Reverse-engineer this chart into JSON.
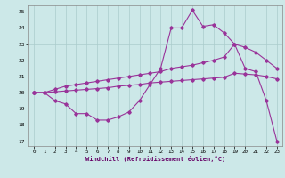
{
  "xlabel": "Windchill (Refroidissement éolien,°C)",
  "bg_color": "#cce8e8",
  "grid_color": "#aacccc",
  "line_color": "#993399",
  "xlim": [
    -0.5,
    23.5
  ],
  "ylim": [
    16.7,
    25.4
  ],
  "yticks": [
    17,
    18,
    19,
    20,
    21,
    22,
    23,
    24,
    25
  ],
  "xticks": [
    0,
    1,
    2,
    3,
    4,
    5,
    6,
    7,
    8,
    9,
    10,
    11,
    12,
    13,
    14,
    15,
    16,
    17,
    18,
    19,
    20,
    21,
    22,
    23
  ],
  "line1_x": [
    0,
    1,
    2,
    3,
    4,
    5,
    6,
    7,
    8,
    9,
    10,
    11,
    12,
    13,
    14,
    15,
    16,
    17,
    18,
    19,
    20,
    21,
    22,
    23
  ],
  "line1_y": [
    20.0,
    20.0,
    19.5,
    19.3,
    18.7,
    18.7,
    18.3,
    18.3,
    18.5,
    18.8,
    19.5,
    20.5,
    21.5,
    24.0,
    24.0,
    25.1,
    24.1,
    24.2,
    23.7,
    23.0,
    21.5,
    21.3,
    19.5,
    17.0
  ],
  "line2_x": [
    0,
    1,
    2,
    3,
    4,
    5,
    6,
    7,
    8,
    9,
    10,
    11,
    12,
    13,
    14,
    15,
    16,
    17,
    18,
    19,
    20,
    21,
    22,
    23
  ],
  "line2_y": [
    20.0,
    20.0,
    20.2,
    20.4,
    20.5,
    20.6,
    20.7,
    20.8,
    20.9,
    21.0,
    21.1,
    21.2,
    21.3,
    21.5,
    21.6,
    21.7,
    21.85,
    22.0,
    22.2,
    23.0,
    22.8,
    22.5,
    22.0,
    21.5
  ],
  "line3_x": [
    0,
    1,
    2,
    3,
    4,
    5,
    6,
    7,
    8,
    9,
    10,
    11,
    12,
    13,
    14,
    15,
    16,
    17,
    18,
    19,
    20,
    21,
    22,
    23
  ],
  "line3_y": [
    20.0,
    20.0,
    20.05,
    20.1,
    20.15,
    20.2,
    20.25,
    20.3,
    20.4,
    20.45,
    20.5,
    20.6,
    20.65,
    20.7,
    20.75,
    20.8,
    20.85,
    20.9,
    20.95,
    21.2,
    21.15,
    21.1,
    21.0,
    20.85
  ]
}
